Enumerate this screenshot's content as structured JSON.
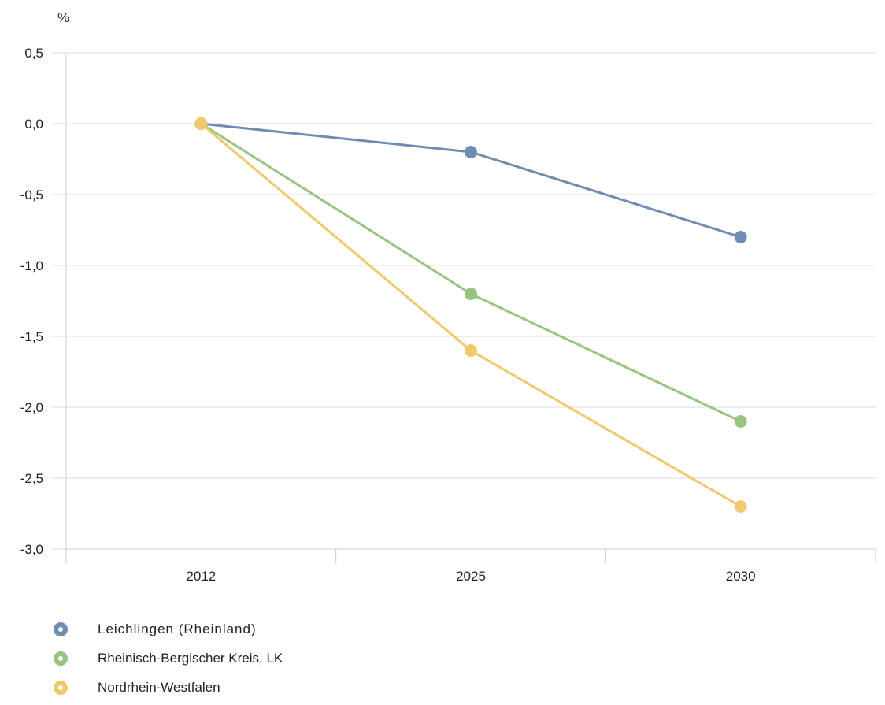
{
  "chart_data": {
    "type": "line",
    "ylabel": "%",
    "categories": [
      "2012",
      "2025",
      "2030"
    ],
    "ylim": [
      -3.0,
      0.5
    ],
    "yticks": [
      0.5,
      0.0,
      -0.5,
      -1.0,
      -1.5,
      -2.0,
      -2.5,
      -3.0
    ],
    "ytick_labels": [
      "0,5",
      "0,0",
      "-0,5",
      "-1,0",
      "-1,5",
      "-2,0",
      "-2,5",
      "-3,0"
    ],
    "grid": true,
    "legend_position": "bottom-left",
    "series": [
      {
        "name": "Leichlingen (Rheinland)",
        "color": "#6f8db3",
        "values": [
          0.0,
          -0.2,
          -0.8
        ]
      },
      {
        "name": "Rheinisch-Bergischer Kreis, LK",
        "color": "#99c47f",
        "values": [
          0.0,
          -1.2,
          -2.1
        ]
      },
      {
        "name": "Nordrhein-Westfalen",
        "color": "#f0c96e",
        "values": [
          0.0,
          -1.6,
          -2.7
        ]
      }
    ]
  }
}
